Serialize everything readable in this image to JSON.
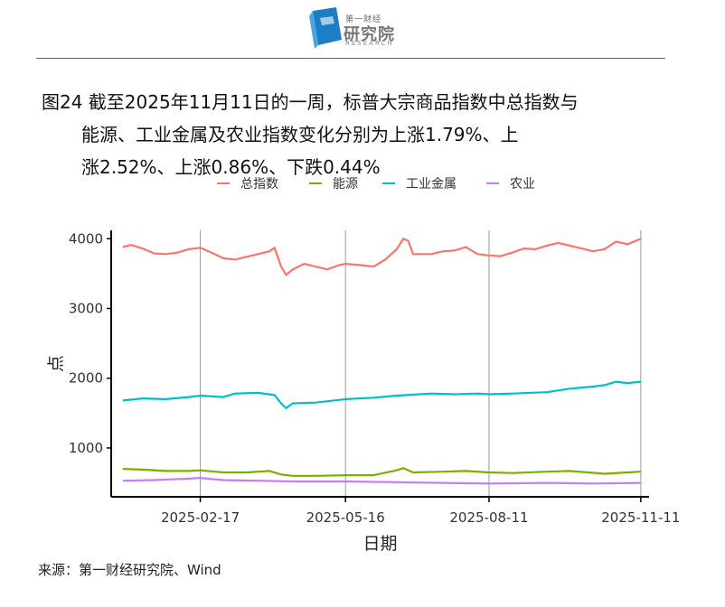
{
  "header": {
    "logo_top": "第一财经",
    "logo_main": "研究院",
    "logo_sub": "RESEARCH"
  },
  "title": {
    "line1": "图24  截至2025年11月11日的一周，标普大宗商品指数中总指数与",
    "line2": "能源、工业金属及农业指数变化分别为上涨1.79%、上",
    "line3": "涨2.52%、上涨0.86%、下跌0.44%"
  },
  "source": "来源：第一财经研究院、Wind",
  "chart_data": {
    "type": "line",
    "xlabel": "日期",
    "ylabel": "点",
    "x_ticks": [
      "2025-02-17",
      "2025-05-16",
      "2025-08-11",
      "2025-11-11"
    ],
    "y_ticks": [
      1000,
      2000,
      3000,
      4000
    ],
    "ylim": [
      300,
      4120
    ],
    "xlim": [
      "2024-12-25",
      "2025-11-16"
    ],
    "grid": "vertical lines at x ticks",
    "legend": "top",
    "series": [
      {
        "name": "总指数",
        "color": "#F8766D",
        "points": [
          [
            "2025-01-01",
            3880
          ],
          [
            "2025-01-06",
            3910
          ],
          [
            "2025-01-13",
            3860
          ],
          [
            "2025-01-20",
            3790
          ],
          [
            "2025-01-27",
            3780
          ],
          [
            "2025-02-03",
            3800
          ],
          [
            "2025-02-10",
            3850
          ],
          [
            "2025-02-17",
            3870
          ],
          [
            "2025-02-24",
            3800
          ],
          [
            "2025-03-03",
            3720
          ],
          [
            "2025-03-10",
            3700
          ],
          [
            "2025-03-17",
            3740
          ],
          [
            "2025-03-24",
            3780
          ],
          [
            "2025-03-31",
            3820
          ],
          [
            "2025-04-03",
            3870
          ],
          [
            "2025-04-07",
            3600
          ],
          [
            "2025-04-10",
            3480
          ],
          [
            "2025-04-14",
            3560
          ],
          [
            "2025-04-21",
            3640
          ],
          [
            "2025-04-28",
            3600
          ],
          [
            "2025-05-05",
            3560
          ],
          [
            "2025-05-12",
            3620
          ],
          [
            "2025-05-16",
            3640
          ],
          [
            "2025-05-26",
            3620
          ],
          [
            "2025-06-02",
            3600
          ],
          [
            "2025-06-09",
            3700
          ],
          [
            "2025-06-16",
            3850
          ],
          [
            "2025-06-20",
            4000
          ],
          [
            "2025-06-23",
            3970
          ],
          [
            "2025-06-26",
            3780
          ],
          [
            "2025-07-07",
            3780
          ],
          [
            "2025-07-14",
            3820
          ],
          [
            "2025-07-21",
            3830
          ],
          [
            "2025-07-28",
            3880
          ],
          [
            "2025-08-04",
            3780
          ],
          [
            "2025-08-11",
            3760
          ],
          [
            "2025-08-18",
            3750
          ],
          [
            "2025-08-25",
            3800
          ],
          [
            "2025-09-01",
            3860
          ],
          [
            "2025-09-08",
            3850
          ],
          [
            "2025-09-15",
            3900
          ],
          [
            "2025-09-22",
            3940
          ],
          [
            "2025-09-29",
            3900
          ],
          [
            "2025-10-06",
            3860
          ],
          [
            "2025-10-13",
            3820
          ],
          [
            "2025-10-20",
            3850
          ],
          [
            "2025-10-27",
            3960
          ],
          [
            "2025-11-03",
            3920
          ],
          [
            "2025-11-11",
            4000
          ]
        ]
      },
      {
        "name": "能源",
        "color": "#7CAE00",
        "points": [
          [
            "2025-01-01",
            700
          ],
          [
            "2025-01-13",
            690
          ],
          [
            "2025-01-27",
            670
          ],
          [
            "2025-02-10",
            670
          ],
          [
            "2025-02-17",
            680
          ],
          [
            "2025-03-03",
            650
          ],
          [
            "2025-03-17",
            650
          ],
          [
            "2025-03-31",
            670
          ],
          [
            "2025-04-07",
            620
          ],
          [
            "2025-04-14",
            600
          ],
          [
            "2025-04-28",
            600
          ],
          [
            "2025-05-16",
            610
          ],
          [
            "2025-06-02",
            610
          ],
          [
            "2025-06-16",
            680
          ],
          [
            "2025-06-20",
            710
          ],
          [
            "2025-06-26",
            650
          ],
          [
            "2025-07-14",
            660
          ],
          [
            "2025-07-28",
            670
          ],
          [
            "2025-08-11",
            650
          ],
          [
            "2025-08-25",
            640
          ],
          [
            "2025-09-15",
            660
          ],
          [
            "2025-09-29",
            670
          ],
          [
            "2025-10-20",
            630
          ],
          [
            "2025-11-03",
            650
          ],
          [
            "2025-11-11",
            660
          ]
        ]
      },
      {
        "name": "工业金属",
        "color": "#00BFC4",
        "points": [
          [
            "2025-01-01",
            1680
          ],
          [
            "2025-01-13",
            1710
          ],
          [
            "2025-01-27",
            1700
          ],
          [
            "2025-02-10",
            1730
          ],
          [
            "2025-02-17",
            1750
          ],
          [
            "2025-03-03",
            1730
          ],
          [
            "2025-03-10",
            1780
          ],
          [
            "2025-03-24",
            1790
          ],
          [
            "2025-04-03",
            1760
          ],
          [
            "2025-04-07",
            1640
          ],
          [
            "2025-04-10",
            1570
          ],
          [
            "2025-04-14",
            1640
          ],
          [
            "2025-04-28",
            1650
          ],
          [
            "2025-05-16",
            1700
          ],
          [
            "2025-06-02",
            1720
          ],
          [
            "2025-06-16",
            1750
          ],
          [
            "2025-07-07",
            1780
          ],
          [
            "2025-07-21",
            1770
          ],
          [
            "2025-08-04",
            1780
          ],
          [
            "2025-08-11",
            1770
          ],
          [
            "2025-08-25",
            1780
          ],
          [
            "2025-09-15",
            1800
          ],
          [
            "2025-09-29",
            1850
          ],
          [
            "2025-10-13",
            1880
          ],
          [
            "2025-10-20",
            1900
          ],
          [
            "2025-10-27",
            1950
          ],
          [
            "2025-11-03",
            1930
          ],
          [
            "2025-11-11",
            1950
          ]
        ]
      },
      {
        "name": "农业",
        "color": "#C77CFF",
        "points": [
          [
            "2025-01-01",
            530
          ],
          [
            "2025-01-20",
            540
          ],
          [
            "2025-02-10",
            560
          ],
          [
            "2025-02-17",
            570
          ],
          [
            "2025-03-03",
            540
          ],
          [
            "2025-03-24",
            530
          ],
          [
            "2025-04-14",
            520
          ],
          [
            "2025-05-16",
            520
          ],
          [
            "2025-06-16",
            510
          ],
          [
            "2025-07-14",
            500
          ],
          [
            "2025-08-11",
            490
          ],
          [
            "2025-09-15",
            500
          ],
          [
            "2025-10-13",
            490
          ],
          [
            "2025-11-11",
            500
          ]
        ]
      }
    ]
  }
}
